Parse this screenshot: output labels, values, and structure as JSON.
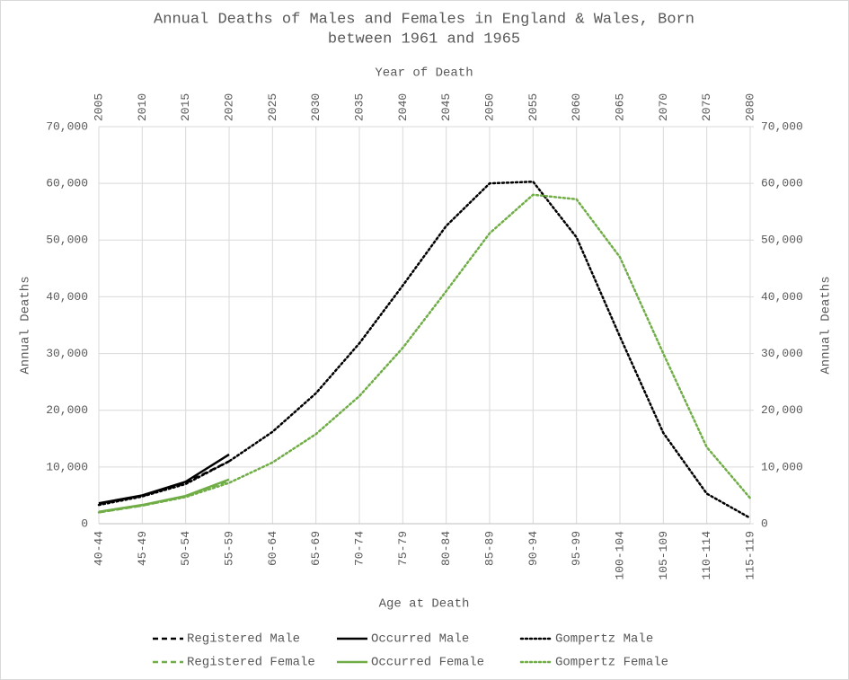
{
  "chart_data": {
    "type": "line",
    "title": "Annual Deaths of Males and Females in England & Wales, Born",
    "subtitle": "between 1961 and 1965",
    "x_label": "Age at Death",
    "x2_label": "Year of Death",
    "y_label": "Annual Deaths",
    "y2_label": "Annual Deaths",
    "categories": [
      "40-44",
      "45-49",
      "50-54",
      "55-59",
      "60-64",
      "65-69",
      "70-74",
      "75-79",
      "80-84",
      "85-89",
      "90-94",
      "95-99",
      "100-104",
      "105-109",
      "110-114",
      "115-119"
    ],
    "top_categories": [
      "2005",
      "2010",
      "2015",
      "2020",
      "2025",
      "2030",
      "2035",
      "2040",
      "2045",
      "2050",
      "2055",
      "2060",
      "2065",
      "2070",
      "2075",
      "2080"
    ],
    "ylim": [
      0,
      70000
    ],
    "yticks": [
      0,
      {
        "value": 10000,
        "label": "10,000"
      },
      {
        "value": 20000,
        "label": "20,000"
      },
      {
        "value": 30000,
        "label": "30,000"
      },
      {
        "value": 40000,
        "label": "40,000"
      },
      {
        "value": 50000,
        "label": "50,000"
      },
      {
        "value": 60000,
        "label": "60,000"
      },
      {
        "value": 70000,
        "label": "70,000"
      }
    ],
    "y2lim": [
      0,
      70000
    ],
    "y2ticks": [
      0,
      {
        "value": 10000,
        "label": "10,000"
      },
      {
        "value": 20000,
        "label": "20,000"
      },
      {
        "value": 30000,
        "label": "30,000"
      },
      {
        "value": 40000,
        "label": "40,000"
      },
      {
        "value": 50000,
        "label": "50,000"
      },
      {
        "value": 60000,
        "label": "60,000"
      },
      {
        "value": 70000,
        "label": "70,000"
      }
    ],
    "grid": true,
    "legend": "bottom",
    "series": [
      {
        "name": "Registered Male",
        "color": "#000000",
        "dash": "dashed",
        "values": [
          3500,
          4900,
          7200,
          11000,
          null,
          null,
          null,
          null,
          null,
          null,
          null,
          null,
          null,
          null,
          null,
          null
        ]
      },
      {
        "name": "Occurred Male",
        "color": "#000000",
        "dash": "solid",
        "values": [
          3600,
          5000,
          7400,
          12200,
          null,
          null,
          null,
          null,
          null,
          null,
          null,
          null,
          null,
          null,
          null,
          null
        ]
      },
      {
        "name": "Gompertz Male",
        "color": "#000000",
        "dash": "dotted",
        "values": [
          3300,
          4800,
          7000,
          11000,
          16200,
          23000,
          31800,
          42000,
          52500,
          60000,
          60300,
          50500,
          33000,
          16000,
          5300,
          1000
        ]
      },
      {
        "name": "Registered Female",
        "color": "#70ad47",
        "dash": "dashed",
        "values": [
          2000,
          3200,
          4800,
          7600,
          null,
          null,
          null,
          null,
          null,
          null,
          null,
          null,
          null,
          null,
          null,
          null
        ]
      },
      {
        "name": "Occurred Female",
        "color": "#70ad47",
        "dash": "solid",
        "values": [
          2100,
          3300,
          4900,
          7800,
          null,
          null,
          null,
          null,
          null,
          null,
          null,
          null,
          null,
          null,
          null,
          null
        ]
      },
      {
        "name": "Gompertz Female",
        "color": "#70ad47",
        "dash": "dotted",
        "values": [
          2000,
          3200,
          4700,
          7200,
          10800,
          15800,
          22500,
          31000,
          41000,
          51200,
          58000,
          57200,
          47000,
          30000,
          13500,
          4500
        ]
      }
    ]
  }
}
